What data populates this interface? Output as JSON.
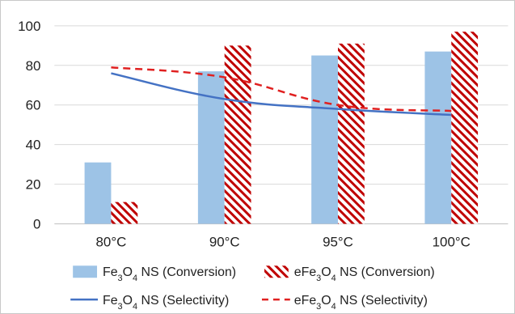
{
  "chart_data": {
    "type": "bar",
    "categories": [
      "80°C",
      "90°C",
      "95°C",
      "100°C"
    ],
    "ylim": [
      0,
      100
    ],
    "yticks": [
      0,
      20,
      40,
      60,
      80,
      100
    ],
    "grid": true,
    "legend_position": "bottom",
    "series": [
      {
        "name": "Fe3O4 NS (Conversion)",
        "kind": "bar",
        "style": "solid",
        "color": "#9DC3E6",
        "values": [
          31,
          77,
          85,
          87
        ]
      },
      {
        "name": "eFe3O4 NS (Conversion)",
        "kind": "bar",
        "style": "hatched",
        "color": "#C00000",
        "values": [
          11,
          90,
          91,
          97
        ]
      },
      {
        "name": "Fe3O4 NS (Selectivity)",
        "kind": "line",
        "style": "solid",
        "color": "#4472C4",
        "values": [
          76,
          63,
          58,
          55
        ]
      },
      {
        "name": "eFe3O4 NS (Selectivity)",
        "kind": "line",
        "style": "dashed",
        "color": "#E02020",
        "values": [
          79,
          74,
          60,
          57
        ]
      }
    ]
  },
  "legend": [
    {
      "prefix": "",
      "formula_a": "Fe",
      "formula_sub_a": "3",
      "formula_b": "O",
      "formula_sub_b": "4",
      "suffix": " NS  (Conversion)"
    },
    {
      "prefix": "e",
      "formula_a": "Fe",
      "formula_sub_a": "3",
      "formula_b": "O",
      "formula_sub_b": "4",
      "suffix": " NS  (Conversion)"
    },
    {
      "prefix": "",
      "formula_a": "Fe",
      "formula_sub_a": "3",
      "formula_b": "O",
      "formula_sub_b": "4",
      "suffix": " NS  (Selectivity)"
    },
    {
      "prefix": "e",
      "formula_a": "Fe",
      "formula_sub_a": "3",
      "formula_b": "O",
      "formula_sub_b": "4",
      "suffix": " NS  (Selectivity)"
    }
  ]
}
